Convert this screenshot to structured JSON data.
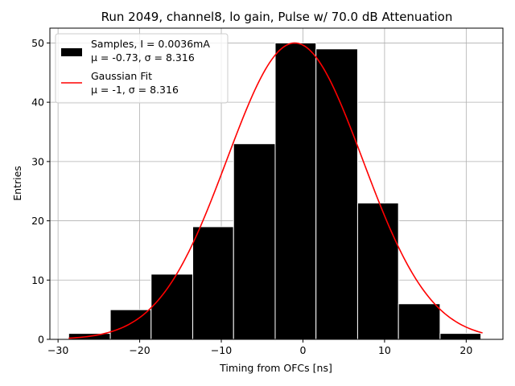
{
  "chart_data": {
    "type": "bar",
    "title": "Run 2049, channel8, lo gain, Pulse w/ 70.0 dB Attenuation",
    "xlabel": "Timing from OFCs [ns]",
    "ylabel": "Entries",
    "xlim": [
      -31,
      24.5
    ],
    "ylim": [
      0,
      52.5
    ],
    "xticks": [
      -30,
      -20,
      -10,
      0,
      10,
      20
    ],
    "yticks": [
      0,
      10,
      20,
      30,
      40,
      50
    ],
    "grid": true,
    "legend_position": "top-left",
    "histogram": {
      "name": "Samples, I = 0.0036mA",
      "stats": "μ = -0.73, σ = 8.316",
      "color": "#000000",
      "bin_edges": [
        -28.7,
        -23.6,
        -18.6,
        -13.5,
        -8.5,
        -3.4,
        1.6,
        6.7,
        11.7,
        16.8,
        21.8
      ],
      "counts": [
        1,
        5,
        11,
        19,
        33,
        50,
        49,
        23,
        6,
        1
      ]
    },
    "fit": {
      "name": "Gaussian Fit",
      "stats": "μ = -1, σ = 8.316",
      "color": "#ff0000",
      "mu": -1,
      "sigma": 8.316,
      "amplitude": 50,
      "x_range": [
        -28.7,
        22
      ]
    }
  }
}
